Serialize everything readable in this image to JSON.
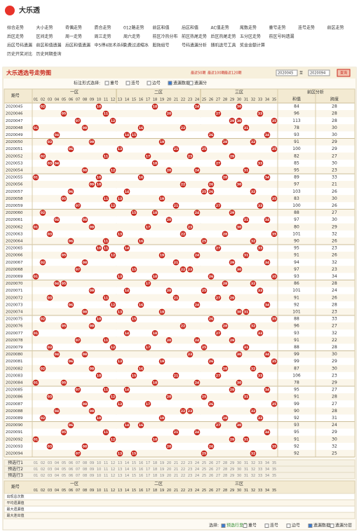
{
  "header": {
    "logo": "大乐透"
  },
  "nav": [
    [
      "综合走势",
      "大小走势",
      "奇偶走势",
      "质合走势",
      "012路走势",
      "前区和值",
      "后区和值",
      "AC值走势",
      "尾数走势",
      "重号走势",
      "连号走势",
      "前区走势"
    ],
    [
      "后区走势",
      "区间走势",
      "周一走势",
      "周三走势",
      "周六走势",
      "前区冷热分布",
      "前区热尾走势",
      "后区热尾走势",
      "五分区走势",
      "前区号码遗漏"
    ],
    [
      "后区号码遗漏",
      "前区和值遗漏",
      "后区和值遗漏",
      "中5得4技术杀码",
      "免费过滤缩水",
      "胆拖组号",
      "号码遗漏分析",
      "随机选号工具",
      "奖金金额计算"
    ],
    [
      "历史开奖对比",
      "历史同期查询"
    ]
  ],
  "panel": {
    "title": "大乐透选号走势图",
    "recent": [
      "最近50期",
      "最近100期",
      "最近120期"
    ],
    "from": "2020045",
    "to_label": "至",
    "to": "2020094",
    "query": "查询",
    "mark_label": "标注形式选择:",
    "mark_options": [
      "重号",
      "连号",
      "边号",
      "遗漏数据",
      "遗漏分"
    ]
  },
  "table": {
    "period_header": "期号",
    "zones": [
      "一区",
      "二区",
      "三区"
    ],
    "analysis_header": "前区分析",
    "analysis_columns": [
      "和值",
      "跨度"
    ],
    "columns": [
      "01",
      "02",
      "03",
      "04",
      "05",
      "06",
      "07",
      "08",
      "09",
      "10",
      "11",
      "12",
      "13",
      "14",
      "15",
      "16",
      "17",
      "18",
      "19",
      "20",
      "21",
      "22",
      "23",
      "24",
      "25",
      "26",
      "27",
      "28",
      "29",
      "30",
      "31",
      "32",
      "33",
      "34",
      "35"
    ],
    "draws": [
      {
        "period": "2020045",
        "balls": [
          "02",
          "10",
          "18",
          "24",
          "30"
        ],
        "sum": 84,
        "span": 28
      },
      {
        "period": "2020046",
        "balls": [
          "05",
          "11",
          "20",
          "27",
          "33"
        ],
        "sum": 96,
        "span": 28
      },
      {
        "period": "2020047",
        "balls": [
          "07",
          "12",
          "29",
          "30",
          "35"
        ],
        "sum": 113,
        "span": 28
      },
      {
        "period": "2020048",
        "balls": [
          "01",
          "08",
          "16",
          "22",
          "31"
        ],
        "sum": 78,
        "span": 30
      },
      {
        "period": "2020049",
        "balls": [
          "04",
          "14",
          "15",
          "26",
          "34"
        ],
        "sum": 93,
        "span": 30
      },
      {
        "period": "2020050",
        "balls": [
          "03",
          "09",
          "19",
          "28",
          "32"
        ],
        "sum": 91,
        "span": 29
      },
      {
        "period": "2020051",
        "balls": [
          "06",
          "13",
          "21",
          "25",
          "35"
        ],
        "sum": 100,
        "span": 29
      },
      {
        "period": "2020052",
        "balls": [
          "02",
          "11",
          "17",
          "23",
          "29"
        ],
        "sum": 82,
        "span": 27
      },
      {
        "period": "2020053",
        "balls": [
          "03",
          "04",
          "18",
          "27",
          "33"
        ],
        "sum": 85,
        "span": 30
      },
      {
        "period": "2020054",
        "balls": [
          "08",
          "12",
          "20",
          "24",
          "31"
        ],
        "sum": 95,
        "span": 23
      },
      {
        "period": "2020055",
        "balls": [
          "01",
          "10",
          "16",
          "28",
          "34"
        ],
        "sum": 89,
        "span": 33
      },
      {
        "period": "2020056",
        "balls": [
          "09",
          "10",
          "22",
          "26",
          "30"
        ],
        "sum": 97,
        "span": 21
      },
      {
        "period": "2020057",
        "balls": [
          "06",
          "14",
          "25",
          "26",
          "32"
        ],
        "sum": 103,
        "span": 26
      },
      {
        "period": "2020058",
        "balls": [
          "05",
          "11",
          "13",
          "19",
          "35"
        ],
        "sum": 83,
        "span": 30
      },
      {
        "period": "2020059",
        "balls": [
          "07",
          "12",
          "21",
          "27",
          "33"
        ],
        "sum": 100,
        "span": 26
      },
      {
        "period": "2020060",
        "balls": [
          "02",
          "15",
          "18",
          "24",
          "29"
        ],
        "sum": 88,
        "span": 27
      },
      {
        "period": "2020061",
        "balls": [
          "04",
          "08",
          "20",
          "31",
          "34"
        ],
        "sum": 97,
        "span": 30
      },
      {
        "period": "2020062",
        "balls": [
          "01",
          "09",
          "17",
          "23",
          "30"
        ],
        "sum": 80,
        "span": 29
      },
      {
        "period": "2020063",
        "balls": [
          "03",
          "13",
          "22",
          "28",
          "35"
        ],
        "sum": 101,
        "span": 32
      },
      {
        "period": "2020064",
        "balls": [
          "06",
          "11",
          "16",
          "25",
          "32"
        ],
        "sum": 90,
        "span": 26
      },
      {
        "period": "2020065",
        "balls": [
          "10",
          "11",
          "14",
          "27",
          "33"
        ],
        "sum": 95,
        "span": 23
      },
      {
        "period": "2020066",
        "balls": [
          "05",
          "12",
          "19",
          "24",
          "31"
        ],
        "sum": 91,
        "span": 26
      },
      {
        "period": "2020067",
        "balls": [
          "02",
          "08",
          "21",
          "29",
          "34"
        ],
        "sum": 94,
        "span": 32
      },
      {
        "period": "2020068",
        "balls": [
          "07",
          "15",
          "22",
          "23",
          "30"
        ],
        "sum": 97,
        "span": 23
      },
      {
        "period": "2020069",
        "balls": [
          "01",
          "13",
          "18",
          "26",
          "35"
        ],
        "sum": 93,
        "span": 34
      },
      {
        "period": "2020070",
        "balls": [
          "04",
          "05",
          "17",
          "28",
          "32"
        ],
        "sum": 86,
        "span": 28
      },
      {
        "period": "2020071",
        "balls": [
          "09",
          "14",
          "20",
          "25",
          "33"
        ],
        "sum": 101,
        "span": 24
      },
      {
        "period": "2020072",
        "balls": [
          "03",
          "11",
          "21",
          "27",
          "29"
        ],
        "sum": 91,
        "span": 26
      },
      {
        "period": "2020073",
        "balls": [
          "06",
          "12",
          "16",
          "24",
          "34"
        ],
        "sum": 92,
        "span": 28
      },
      {
        "period": "2020074",
        "balls": [
          "08",
          "13",
          "19",
          "30",
          "31"
        ],
        "sum": 101,
        "span": 23
      },
      {
        "period": "2020075",
        "balls": [
          "02",
          "10",
          "15",
          "26",
          "35"
        ],
        "sum": 88,
        "span": 33
      },
      {
        "period": "2020076",
        "balls": [
          "05",
          "09",
          "22",
          "28",
          "32"
        ],
        "sum": 96,
        "span": 27
      },
      {
        "period": "2020077",
        "balls": [
          "01",
          "14",
          "18",
          "27",
          "33"
        ],
        "sum": 93,
        "span": 32
      },
      {
        "period": "2020078",
        "balls": [
          "07",
          "11",
          "20",
          "24",
          "29"
        ],
        "sum": 91,
        "span": 22
      },
      {
        "period": "2020079",
        "balls": [
          "03",
          "12",
          "17",
          "25",
          "31"
        ],
        "sum": 88,
        "span": 28
      },
      {
        "period": "2020080",
        "balls": [
          "04",
          "08",
          "23",
          "30",
          "34"
        ],
        "sum": 99,
        "span": 30
      },
      {
        "period": "2020081",
        "balls": [
          "06",
          "13",
          "19",
          "26",
          "35"
        ],
        "sum": 99,
        "span": 29
      },
      {
        "period": "2020082",
        "balls": [
          "02",
          "09",
          "16",
          "28",
          "32"
        ],
        "sum": 87,
        "span": 30
      },
      {
        "period": "2020083",
        "balls": [
          "10",
          "15",
          "21",
          "27",
          "33"
        ],
        "sum": 106,
        "span": 23
      },
      {
        "period": "2020084",
        "balls": [
          "01",
          "05",
          "18",
          "24",
          "30"
        ],
        "sum": 78,
        "span": 29
      },
      {
        "period": "2020085",
        "balls": [
          "07",
          "11",
          "14",
          "29",
          "34"
        ],
        "sum": 95,
        "span": 27
      },
      {
        "period": "2020086",
        "balls": [
          "03",
          "12",
          "20",
          "25",
          "31"
        ],
        "sum": 91,
        "span": 28
      },
      {
        "period": "2020087",
        "balls": [
          "08",
          "13",
          "17",
          "26",
          "35"
        ],
        "sum": 99,
        "span": 27
      },
      {
        "period": "2020088",
        "balls": [
          "04",
          "09",
          "22",
          "23",
          "32"
        ],
        "sum": 90,
        "span": 28
      },
      {
        "period": "2020089",
        "balls": [
          "02",
          "10",
          "19",
          "28",
          "33"
        ],
        "sum": 92,
        "span": 31
      },
      {
        "period": "2020090",
        "balls": [
          "06",
          "14",
          "16",
          "27",
          "30"
        ],
        "sum": 93,
        "span": 24
      },
      {
        "period": "2020091",
        "balls": [
          "05",
          "11",
          "21",
          "24",
          "34"
        ],
        "sum": 95,
        "span": 29
      },
      {
        "period": "2020092",
        "balls": [
          "01",
          "12",
          "18",
          "29",
          "31"
        ],
        "sum": 91,
        "span": 30
      },
      {
        "period": "2020093",
        "balls": [
          "03",
          "08",
          "20",
          "26",
          "35"
        ],
        "sum": 92,
        "span": 32
      },
      {
        "period": "2020094",
        "balls": [
          "07",
          "13",
          "15",
          "25",
          "32"
        ],
        "sum": 92,
        "span": 25
      }
    ]
  },
  "footer": {
    "preselect": [
      "预选行1",
      "预选行2",
      "预选行3"
    ],
    "stats": [
      "出现总次数",
      "平均遗漏值",
      "最大遗漏值",
      "最大连出值"
    ],
    "select_label": "选择:",
    "select_options": [
      "预选行显示",
      "重号",
      "连号",
      "边号",
      "遗漏数据",
      "遗漏分层"
    ]
  }
}
